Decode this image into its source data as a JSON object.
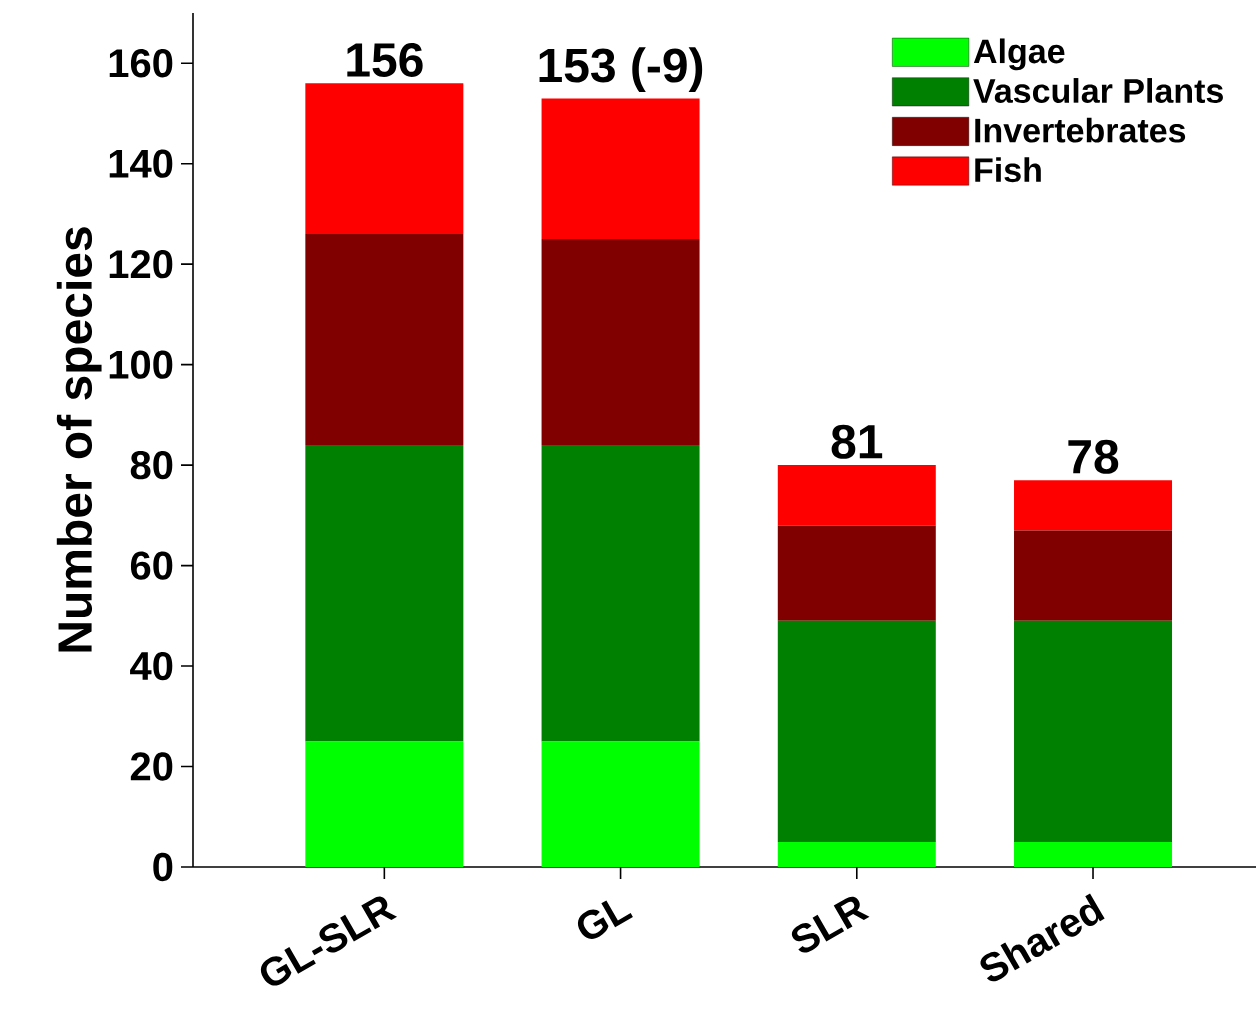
{
  "chart_data": {
    "type": "bar",
    "stacked": true,
    "ylabel": "Number of species",
    "categories": [
      "GL-SLR",
      "GL",
      "SLR",
      "Shared"
    ],
    "series": [
      {
        "name": "Algae",
        "color": "#00ff00",
        "values": [
          25,
          25,
          5,
          5
        ]
      },
      {
        "name": "Vascular Plants",
        "color": "#008000",
        "values": [
          59,
          59,
          44,
          44
        ]
      },
      {
        "name": "Invertebrates",
        "color": "#800000",
        "values": [
          42,
          41,
          19,
          18
        ]
      },
      {
        "name": "Fish",
        "color": "#ff0000",
        "values": [
          30,
          28,
          12,
          10
        ]
      }
    ],
    "totals": [
      "156",
      "153 (-9)",
      "81",
      "78"
    ],
    "ylim": [
      0,
      170
    ],
    "yticks": [
      0,
      20,
      40,
      60,
      80,
      100,
      120,
      140,
      160
    ],
    "legend": "top right",
    "grid": false
  }
}
